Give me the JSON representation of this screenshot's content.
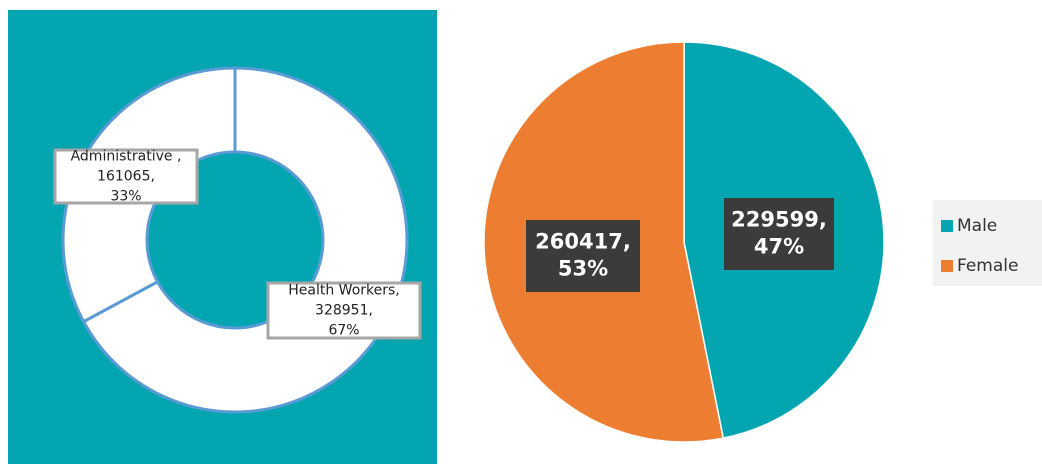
{
  "chart_data": [
    {
      "type": "donut",
      "values": [
        328951,
        161065
      ],
      "value_labels": [
        "Health Workers, 328951, 67%",
        "Administrative , 161065, 33%"
      ],
      "colors": [
        "#ffffff",
        "#ffffff"
      ],
      "edge_color": "#5b9bd5",
      "background": "#03a5b1"
    },
    {
      "type": "pie",
      "categories": [
        "Male",
        "Female"
      ],
      "values": [
        229599,
        260417
      ],
      "value_labels": [
        "229599, 47%",
        "260417, 53%"
      ],
      "colors": [
        "#03a5b1",
        "#ed7d31"
      ],
      "legend": "right"
    }
  ]
}
